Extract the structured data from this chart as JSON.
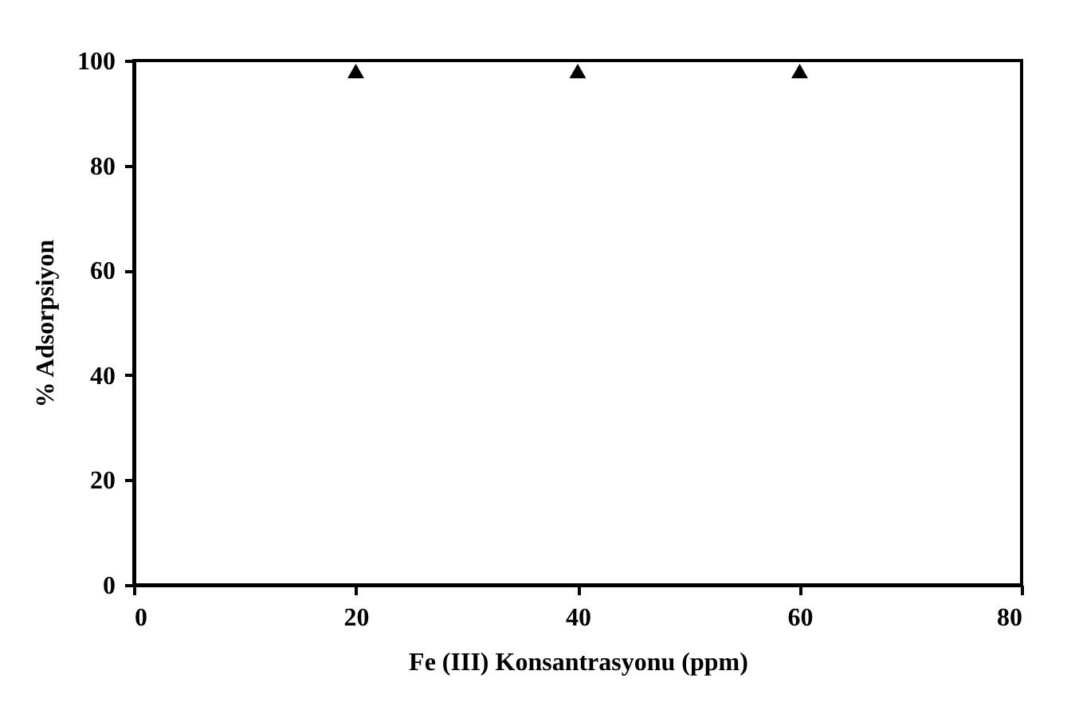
{
  "chart_data": {
    "type": "scatter",
    "xlabel": "Fe (III) Konsantrasyonu (ppm)",
    "ylabel": "% Adsorpsiyon",
    "x": [
      20,
      40,
      60
    ],
    "series": [
      {
        "color": "#000000",
        "values": [
          98,
          98,
          98
        ]
      }
    ],
    "marker": "triangle",
    "xlim": [
      0,
      80
    ],
    "xticks": [
      0,
      20,
      40,
      60,
      80
    ],
    "ylim": [
      0,
      100
    ],
    "yticks": [
      0,
      20,
      40,
      60,
      80,
      100
    ],
    "grid": false,
    "legend": false
  }
}
